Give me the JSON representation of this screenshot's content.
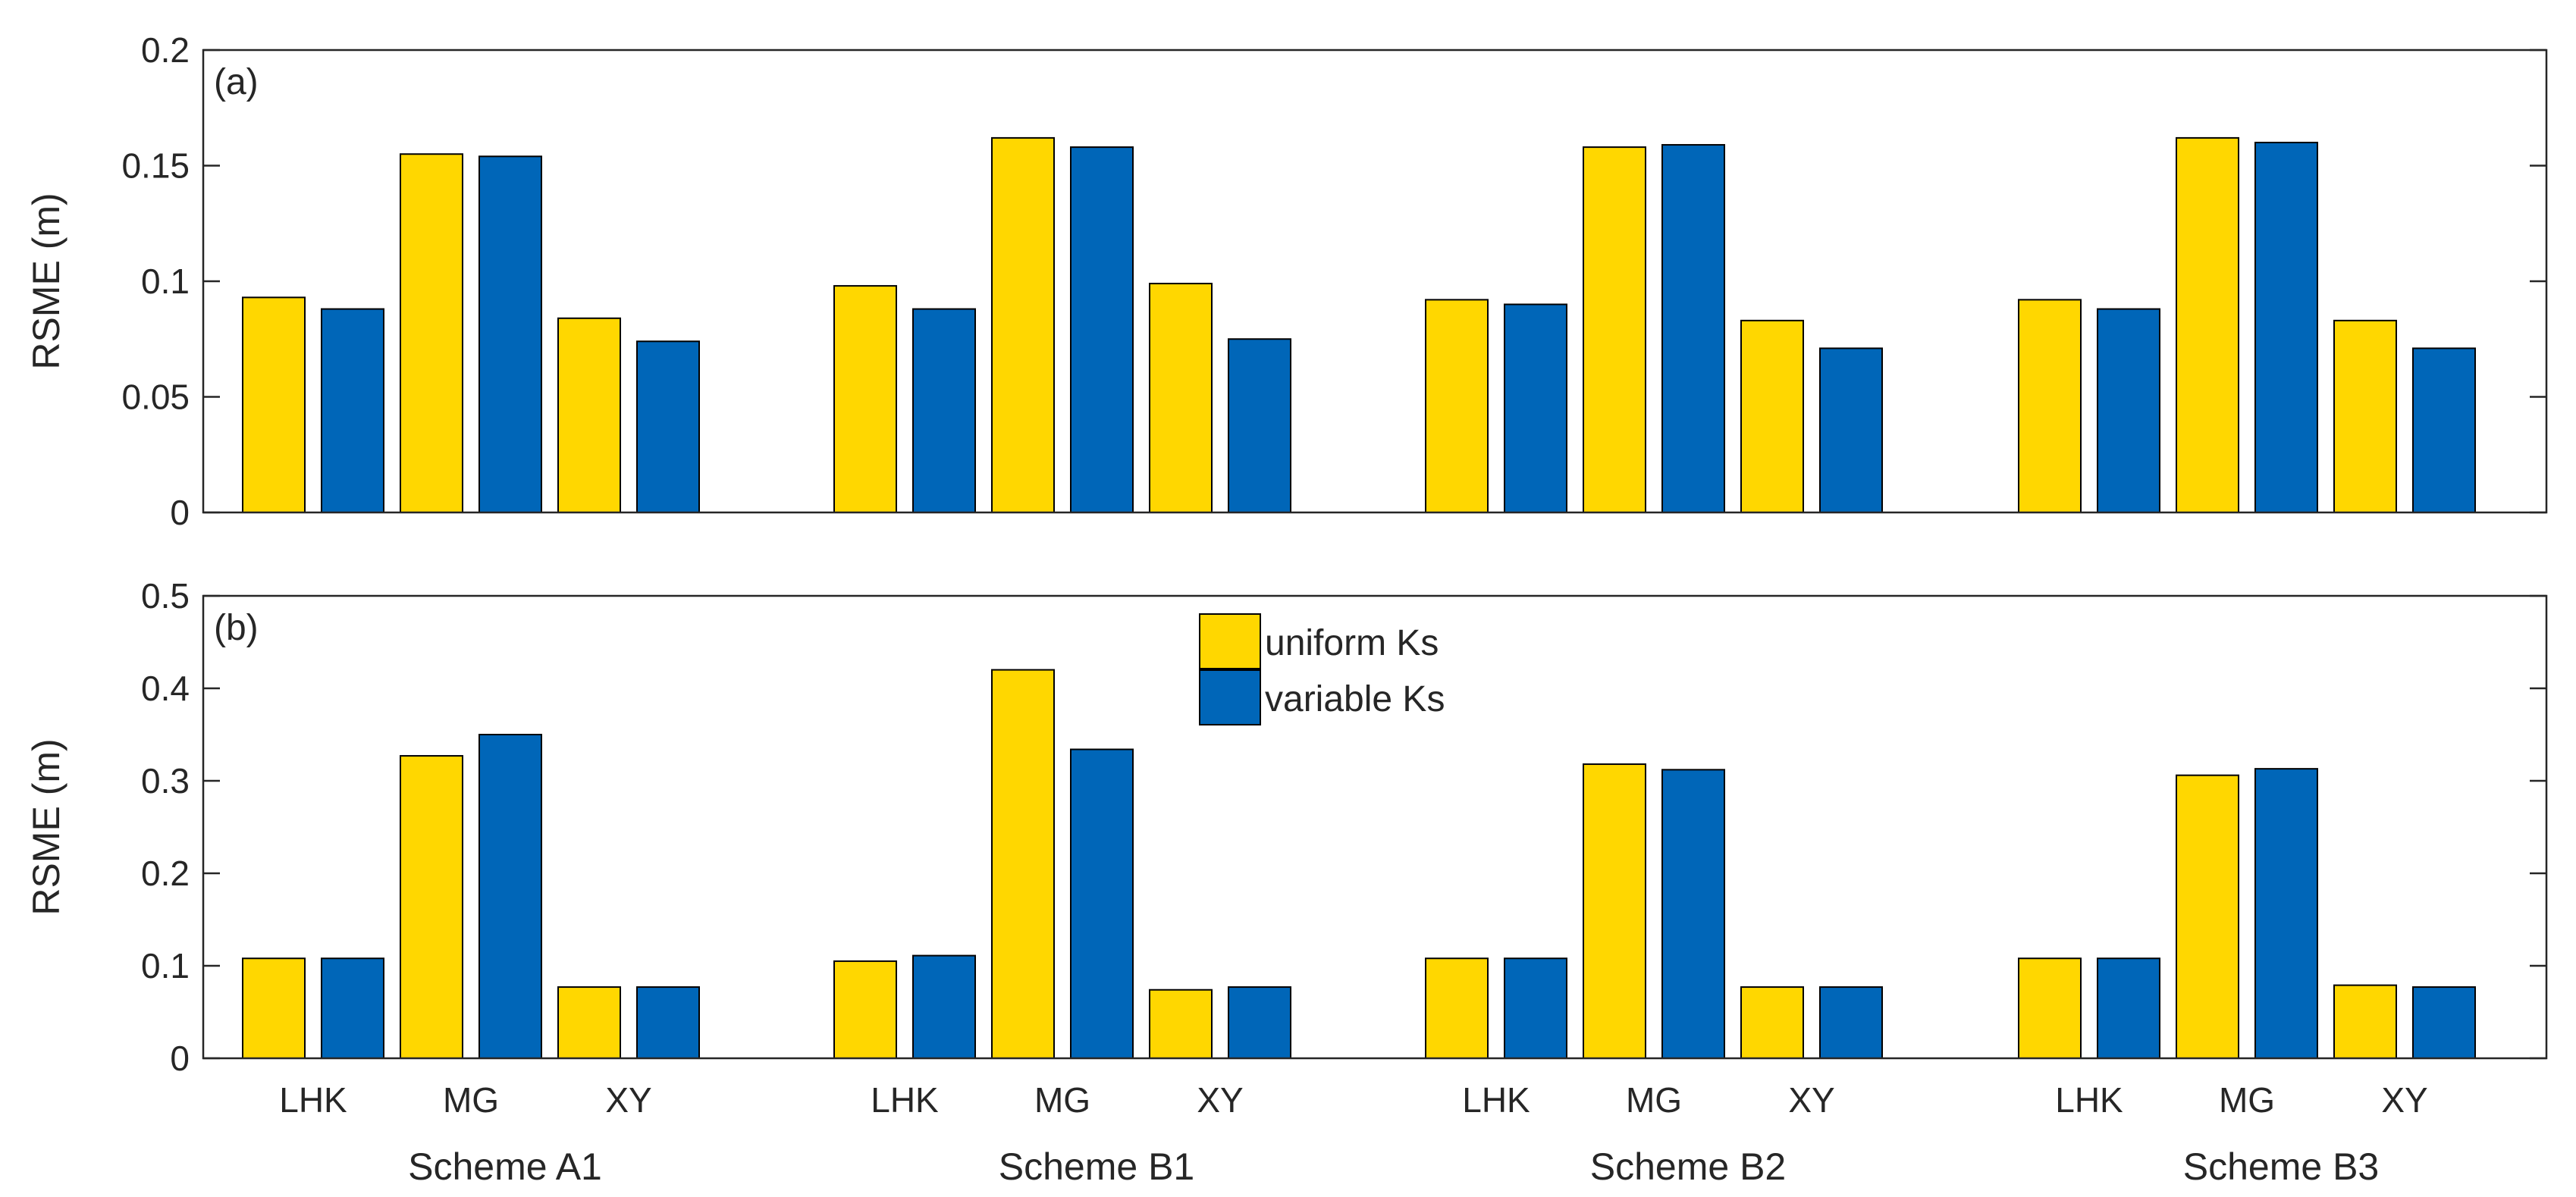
{
  "chart_data": [
    {
      "id": "a",
      "type": "bar",
      "panel_label": "(a)",
      "ylabel": "RSME (m)",
      "ylim": [
        0,
        0.2
      ],
      "yticks": [
        0,
        0.05,
        0.1,
        0.15,
        0.2
      ],
      "ytick_labels": [
        "0",
        "0.05",
        "0.1",
        "0.15",
        "0.2"
      ],
      "groups": [
        "Scheme A1",
        "Scheme B1",
        "Scheme B2",
        "Scheme B3"
      ],
      "methods": [
        "LHK",
        "MG",
        "XY"
      ],
      "series": [
        {
          "name": "uniform Ks",
          "values": [
            [
              0.093,
              0.155,
              0.084
            ],
            [
              0.098,
              0.162,
              0.099
            ],
            [
              0.092,
              0.158,
              0.083
            ],
            [
              0.092,
              0.162,
              0.083
            ]
          ]
        },
        {
          "name": "variable Ks",
          "values": [
            [
              0.088,
              0.154,
              0.074
            ],
            [
              0.088,
              0.158,
              0.075
            ],
            [
              0.09,
              0.159,
              0.071
            ],
            [
              0.088,
              0.16,
              0.071
            ]
          ]
        }
      ]
    },
    {
      "id": "b",
      "type": "bar",
      "panel_label": "(b)",
      "ylabel": "RSME (m)",
      "ylim": [
        0,
        0.5
      ],
      "yticks": [
        0,
        0.1,
        0.2,
        0.3,
        0.4,
        0.5
      ],
      "ytick_labels": [
        "0",
        "0.1",
        "0.2",
        "0.3",
        "0.4",
        "0.5"
      ],
      "groups": [
        "Scheme A1",
        "Scheme B1",
        "Scheme B2",
        "Scheme B3"
      ],
      "methods": [
        "LHK",
        "MG",
        "XY"
      ],
      "legend": {
        "position": "top-center",
        "entries": [
          "uniform Ks",
          "variable Ks"
        ]
      },
      "series": [
        {
          "name": "uniform Ks",
          "values": [
            [
              0.108,
              0.327,
              0.077
            ],
            [
              0.105,
              0.42,
              0.074
            ],
            [
              0.108,
              0.318,
              0.077
            ],
            [
              0.108,
              0.306,
              0.079
            ]
          ]
        },
        {
          "name": "variable Ks",
          "values": [
            [
              0.108,
              0.35,
              0.077
            ],
            [
              0.111,
              0.334,
              0.077
            ],
            [
              0.108,
              0.312,
              0.077
            ],
            [
              0.108,
              0.313,
              0.077
            ]
          ]
        }
      ]
    }
  ],
  "colors": {
    "uniform": "#FFD700",
    "variable": "#0066B8",
    "axis": "#262626",
    "edge": "#000000"
  }
}
